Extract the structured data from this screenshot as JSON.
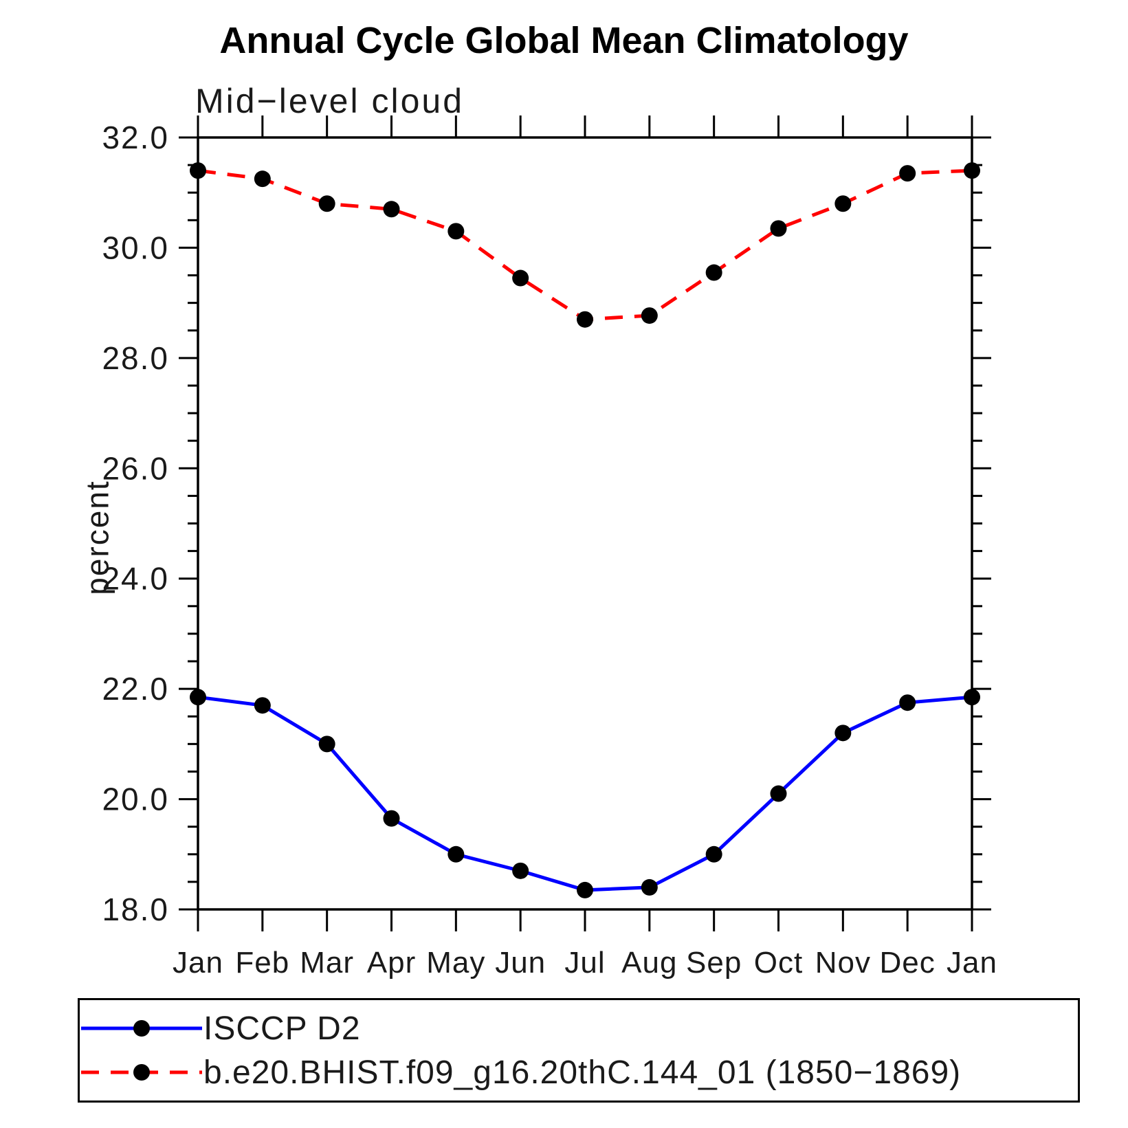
{
  "chart_data": {
    "type": "line",
    "title": "Annual Cycle Global Mean Climatology",
    "subtitle": "Mid−level cloud",
    "ylabel": "percent",
    "categories": [
      "Jan",
      "Feb",
      "Mar",
      "Apr",
      "May",
      "Jun",
      "Jul",
      "Aug",
      "Sep",
      "Oct",
      "Nov",
      "Dec",
      "Jan"
    ],
    "ylim": [
      18.0,
      32.0
    ],
    "ytick_major_step": 2.0,
    "ytick_minor_step": 0.5,
    "ytick_labels": [
      "18.0",
      "20.0",
      "22.0",
      "24.0",
      "26.0",
      "28.0",
      "30.0",
      "32.0"
    ],
    "grid": false,
    "legend_position": "bottom",
    "axis_color": "#000000",
    "marker_color": "#000000",
    "series": [
      {
        "name": "ISCCP D2",
        "color": "#0000ff",
        "style": "solid",
        "values": [
          21.85,
          21.7,
          21.0,
          19.65,
          19.0,
          18.7,
          18.35,
          18.4,
          19.0,
          20.1,
          21.2,
          21.75,
          21.85
        ]
      },
      {
        "name": "b.e20.BHIST.f09_g16.20thC.144_01 (1850−1869)",
        "color": "#ff0000",
        "style": "dashed",
        "values": [
          31.4,
          31.25,
          30.8,
          30.7,
          30.3,
          29.45,
          28.7,
          28.77,
          29.55,
          30.35,
          30.8,
          31.35,
          31.4
        ]
      }
    ]
  }
}
